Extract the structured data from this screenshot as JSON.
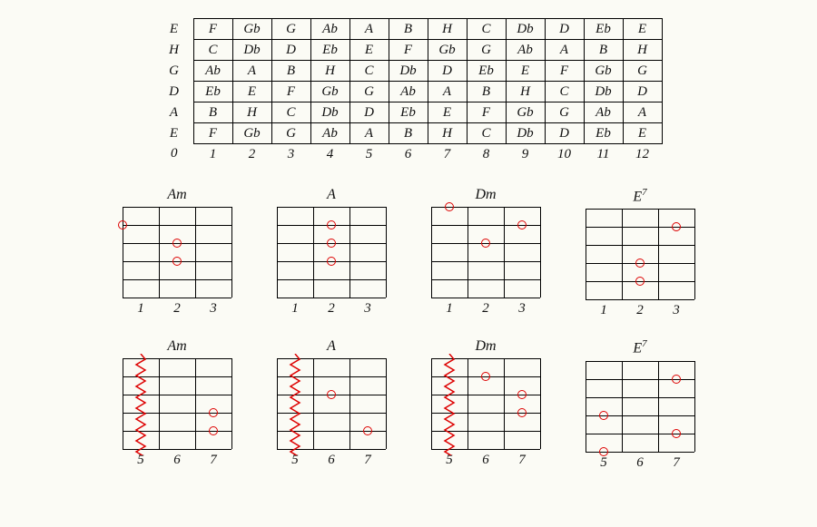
{
  "background_color": "#fbfbf5",
  "accent_color": "#d00",
  "font_family": "Times New Roman",
  "fretboard": {
    "open_notes": [
      "E",
      "H",
      "G",
      "D",
      "A",
      "E"
    ],
    "fret_numbers": [
      "0",
      "1",
      "2",
      "3",
      "4",
      "5",
      "6",
      "7",
      "8",
      "9",
      "10",
      "11",
      "12"
    ],
    "rows": [
      [
        "F",
        "Gb",
        "G",
        "Ab",
        "A",
        "B",
        "H",
        "C",
        "Db",
        "D",
        "Eb",
        "E"
      ],
      [
        "C",
        "Db",
        "D",
        "Eb",
        "E",
        "F",
        "Gb",
        "G",
        "Ab",
        "A",
        "B",
        "H"
      ],
      [
        "Ab",
        "A",
        "B",
        "H",
        "C",
        "Db",
        "D",
        "Eb",
        "E",
        "F",
        "Gb",
        "G"
      ],
      [
        "Eb",
        "E",
        "F",
        "Gb",
        "G",
        "Ab",
        "A",
        "B",
        "H",
        "C",
        "Db",
        "D"
      ],
      [
        "B",
        "H",
        "C",
        "Db",
        "D",
        "Eb",
        "E",
        "F",
        "Gb",
        "G",
        "Ab",
        "A"
      ],
      [
        "F",
        "Gb",
        "G",
        "Ab",
        "A",
        "B",
        "H",
        "C",
        "Db",
        "D",
        "Eb",
        "E"
      ]
    ]
  },
  "chord_grid": {
    "width": 120,
    "height": 100,
    "strings": 6,
    "fret_columns": 3,
    "dot_diameter": 8,
    "dot_border": "#d00"
  },
  "rows": [
    {
      "fret_labels": [
        "1",
        "2",
        "3"
      ],
      "chords": [
        {
          "name": "Am",
          "dots": [
            {
              "fret": 1,
              "string": 2,
              "edge": "left"
            },
            {
              "fret": 2,
              "string": 3
            },
            {
              "fret": 2,
              "string": 4
            }
          ]
        },
        {
          "name": "A",
          "dots": [
            {
              "fret": 2,
              "string": 2
            },
            {
              "fret": 2,
              "string": 3
            },
            {
              "fret": 2,
              "string": 4
            }
          ]
        },
        {
          "name": "Dm",
          "dots": [
            {
              "fret": 1,
              "string": 1,
              "edge": "top"
            },
            {
              "fret": 2,
              "string": 3
            },
            {
              "fret": 3,
              "string": 2
            }
          ]
        },
        {
          "name": "E",
          "sup": "7",
          "dots": [
            {
              "fret": 2,
              "string": 4
            },
            {
              "fret": 2,
              "string": 5
            },
            {
              "fret": 3,
              "string": 2
            }
          ]
        }
      ]
    },
    {
      "fret_labels": [
        "5",
        "6",
        "7"
      ],
      "chords": [
        {
          "name": "Am",
          "barre": 1,
          "dots": [
            {
              "fret": 3,
              "string": 4
            },
            {
              "fret": 3,
              "string": 5
            }
          ]
        },
        {
          "name": "A",
          "barre": 1,
          "dots": [
            {
              "fret": 2,
              "string": 3
            },
            {
              "fret": 3,
              "string": 5
            }
          ]
        },
        {
          "name": "Dm",
          "barre": 1,
          "dots": [
            {
              "fret": 2,
              "string": 2
            },
            {
              "fret": 3,
              "string": 3
            },
            {
              "fret": 3,
              "string": 4
            }
          ]
        },
        {
          "name": "E",
          "sup": "7",
          "dots": [
            {
              "fret": 1,
              "string": 4
            },
            {
              "fret": 1,
              "string": 6
            },
            {
              "fret": 3,
              "string": 2
            },
            {
              "fret": 3,
              "string": 5
            }
          ]
        }
      ]
    }
  ]
}
